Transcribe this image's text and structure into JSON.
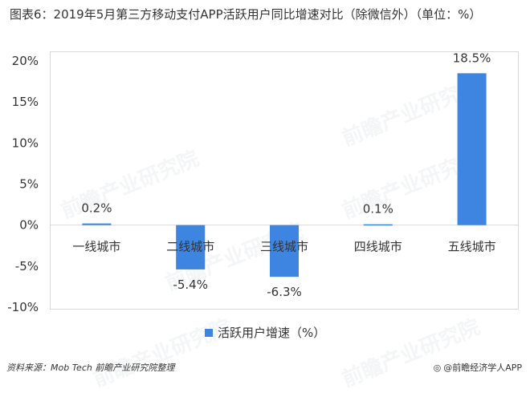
{
  "title": "图表6：2019年5月第三方移动支付APP活跃用户同比增速对比（除微信外）（单位：%）",
  "chart_data": {
    "type": "bar",
    "categories": [
      "一线城市",
      "二线城市",
      "三线城市",
      "四线城市",
      "五线城市"
    ],
    "series": [
      {
        "name": "活跃用户增速（%）",
        "values": [
          0.2,
          -5.4,
          -6.3,
          0.1,
          18.5
        ],
        "color": "#3d85e0"
      }
    ],
    "data_labels": [
      "0.2%",
      "-5.4%",
      "-6.3%",
      "0.1%",
      "18.5%"
    ],
    "ylim": [
      -10,
      20
    ],
    "yticks": [
      -10,
      -5,
      0,
      5,
      10,
      15,
      20
    ],
    "ytick_labels": [
      "-10%",
      "-5%",
      "0%",
      "5%",
      "10%",
      "15%",
      "20%"
    ],
    "legend": "bottom",
    "grid": false
  },
  "footer": {
    "source": "资料来源：Mob Tech 前瞻产业研究院整理",
    "brand": "@前瞻经济学人APP",
    "brand_icon": "wechat-like-icon"
  },
  "watermark": "前瞻产业研究院"
}
